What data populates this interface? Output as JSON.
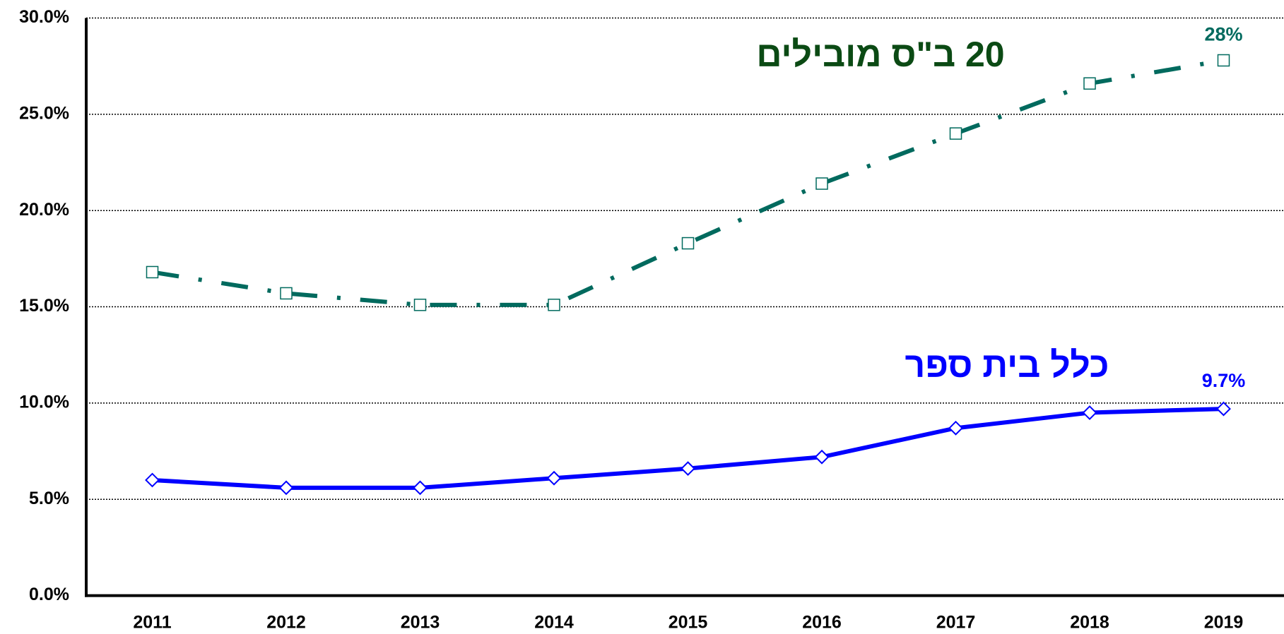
{
  "chart_data": {
    "type": "line",
    "categories": [
      "2011",
      "2012",
      "2013",
      "2014",
      "2015",
      "2016",
      "2017",
      "2018",
      "2019"
    ],
    "series": [
      {
        "name": "20 ב\"ס מובילים",
        "color": "#006a5e",
        "marker": "square",
        "dash": "dashdot",
        "values": [
          16.8,
          15.7,
          15.1,
          15.1,
          18.3,
          21.4,
          24.0,
          26.6,
          27.8
        ],
        "value_labels": [
          null,
          null,
          null,
          null,
          null,
          null,
          null,
          null,
          "28%"
        ]
      },
      {
        "name": "כלל בית ספר",
        "color": "#0000ff",
        "marker": "diamond",
        "dash": "solid",
        "values": [
          6.0,
          5.6,
          5.6,
          6.1,
          6.6,
          7.2,
          8.7,
          9.5,
          9.7
        ],
        "value_labels": [
          null,
          null,
          null,
          null,
          null,
          null,
          null,
          null,
          "9.7%"
        ]
      }
    ],
    "ylim": [
      0,
      30
    ],
    "yticks": [
      {
        "value": 0,
        "label": "0.0%"
      },
      {
        "value": 5,
        "label": "5.0%"
      },
      {
        "value": 10,
        "label": "10.0%"
      },
      {
        "value": 15,
        "label": "15.0%"
      },
      {
        "value": 20,
        "label": "20.0%"
      },
      {
        "value": 25,
        "label": "25.0%"
      },
      {
        "value": 30,
        "label": "30.0%"
      }
    ],
    "grid": true
  }
}
